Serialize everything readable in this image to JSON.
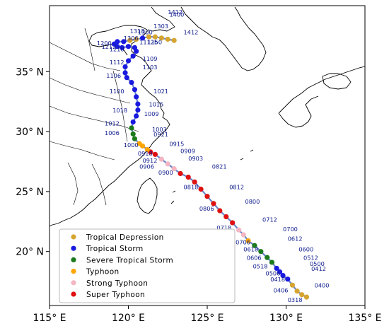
{
  "map": {
    "x_ticks": [
      {
        "value": 115,
        "label": "115° E"
      },
      {
        "value": 120,
        "label": "120° E"
      },
      {
        "value": 125,
        "label": "125° E"
      },
      {
        "value": 130,
        "label": "130° E"
      },
      {
        "value": 135,
        "label": "135° E"
      }
    ],
    "y_ticks": [
      {
        "value": 20,
        "label": "20° N"
      },
      {
        "value": 25,
        "label": "25° N"
      },
      {
        "value": 30,
        "label": "30° N"
      },
      {
        "value": 35,
        "label": "35° N"
      }
    ],
    "lon_range": [
      115,
      135
    ],
    "lat_range": [
      15.5,
      40.5
    ],
    "track_line_color": "#6b84c9",
    "legend": [
      {
        "key": "TD",
        "label": "Tropical Depression",
        "color": "#d6a530"
      },
      {
        "key": "TS",
        "label": "Tropical Storm",
        "color": "#1a1ae0"
      },
      {
        "key": "STS",
        "label": "Severe Tropical Storm",
        "color": "#1c7a1c"
      },
      {
        "key": "TY",
        "label": "Typhoon",
        "color": "#ffa500"
      },
      {
        "key": "STY",
        "label": "Strong Typhoon",
        "color": "#f4b6c2"
      },
      {
        "key": "SuperTY",
        "label": "Super Typhoon",
        "color": "#e01010"
      }
    ],
    "track": [
      {
        "lon": 131.3,
        "lat": 16.2,
        "cat": "TD"
      },
      {
        "lon": 131.0,
        "lat": 16.4,
        "cat": "TD"
      },
      {
        "lon": 130.7,
        "lat": 16.7,
        "cat": "TD"
      },
      {
        "lon": 130.4,
        "lat": 17.2,
        "cat": "TD"
      },
      {
        "lon": 130.1,
        "lat": 17.7,
        "cat": "TS"
      },
      {
        "lon": 129.8,
        "lat": 18.0,
        "cat": "TS"
      },
      {
        "lon": 129.6,
        "lat": 18.3,
        "cat": "TS"
      },
      {
        "lon": 129.4,
        "lat": 18.6,
        "cat": "TS"
      },
      {
        "lon": 129.1,
        "lat": 19.1,
        "cat": "STS"
      },
      {
        "lon": 128.8,
        "lat": 19.5,
        "cat": "STS"
      },
      {
        "lon": 128.4,
        "lat": 20.0,
        "cat": "STS"
      },
      {
        "lon": 128.0,
        "lat": 20.5,
        "cat": "STS"
      },
      {
        "lon": 127.6,
        "lat": 20.9,
        "cat": "TY"
      },
      {
        "lon": 127.3,
        "lat": 21.4,
        "cat": "STY"
      },
      {
        "lon": 127.0,
        "lat": 21.8,
        "cat": "STY"
      },
      {
        "lon": 126.6,
        "lat": 22.4,
        "cat": "SuperTY"
      },
      {
        "lon": 126.2,
        "lat": 22.9,
        "cat": "SuperTY"
      },
      {
        "lon": 125.8,
        "lat": 23.4,
        "cat": "SuperTY"
      },
      {
        "lon": 125.4,
        "lat": 24.0,
        "cat": "SuperTY"
      },
      {
        "lon": 125.0,
        "lat": 24.6,
        "cat": "SuperTY"
      },
      {
        "lon": 124.6,
        "lat": 25.2,
        "cat": "SuperTY"
      },
      {
        "lon": 124.2,
        "lat": 25.8,
        "cat": "SuperTY"
      },
      {
        "lon": 123.8,
        "lat": 26.2,
        "cat": "SuperTY"
      },
      {
        "lon": 123.3,
        "lat": 26.5,
        "cat": "SuperTY"
      },
      {
        "lon": 122.9,
        "lat": 26.9,
        "cat": "STY"
      },
      {
        "lon": 122.5,
        "lat": 27.3,
        "cat": "STY"
      },
      {
        "lon": 122.1,
        "lat": 27.7,
        "cat": "STY"
      },
      {
        "lon": 121.7,
        "lat": 28.1,
        "cat": "SuperTY"
      },
      {
        "lon": 121.4,
        "lat": 28.3,
        "cat": "SuperTY"
      },
      {
        "lon": 121.2,
        "lat": 28.5,
        "cat": "TY"
      },
      {
        "lon": 120.9,
        "lat": 28.8,
        "cat": "TY"
      },
      {
        "lon": 120.7,
        "lat": 29.0,
        "cat": "TY"
      },
      {
        "lon": 120.4,
        "lat": 29.4,
        "cat": "STS"
      },
      {
        "lon": 120.3,
        "lat": 29.8,
        "cat": "STS"
      },
      {
        "lon": 120.2,
        "lat": 30.3,
        "cat": "STS"
      },
      {
        "lon": 120.3,
        "lat": 30.8,
        "cat": "TS"
      },
      {
        "lon": 120.5,
        "lat": 31.3,
        "cat": "TS"
      },
      {
        "lon": 120.6,
        "lat": 31.8,
        "cat": "TS"
      },
      {
        "lon": 120.6,
        "lat": 32.3,
        "cat": "TS"
      },
      {
        "lon": 120.5,
        "lat": 32.9,
        "cat": "TS"
      },
      {
        "lon": 120.4,
        "lat": 33.5,
        "cat": "TS"
      },
      {
        "lon": 120.2,
        "lat": 34.1,
        "cat": "TS"
      },
      {
        "lon": 119.9,
        "lat": 34.5,
        "cat": "TS"
      },
      {
        "lon": 119.8,
        "lat": 34.9,
        "cat": "TS"
      },
      {
        "lon": 119.8,
        "lat": 35.4,
        "cat": "TS"
      },
      {
        "lon": 120.0,
        "lat": 35.9,
        "cat": "TS"
      },
      {
        "lon": 120.3,
        "lat": 36.3,
        "cat": "TS"
      },
      {
        "lon": 120.5,
        "lat": 36.7,
        "cat": "TS"
      },
      {
        "lon": 120.4,
        "lat": 37.0,
        "cat": "TS"
      },
      {
        "lon": 120.0,
        "lat": 37.1,
        "cat": "TS"
      },
      {
        "lon": 119.6,
        "lat": 37.0,
        "cat": "TS"
      },
      {
        "lon": 119.3,
        "lat": 37.1,
        "cat": "TS"
      },
      {
        "lon": 119.1,
        "lat": 37.3,
        "cat": "TS"
      },
      {
        "lon": 119.3,
        "lat": 37.5,
        "cat": "TS"
      },
      {
        "lon": 119.7,
        "lat": 37.5,
        "cat": "TS"
      },
      {
        "lon": 120.1,
        "lat": 37.6,
        "cat": "TD"
      },
      {
        "lon": 120.5,
        "lat": 37.7,
        "cat": "TD"
      },
      {
        "lon": 120.9,
        "lat": 37.8,
        "cat": "TS"
      },
      {
        "lon": 121.3,
        "lat": 37.9,
        "cat": "TD"
      },
      {
        "lon": 121.7,
        "lat": 37.9,
        "cat": "TD"
      },
      {
        "lon": 122.1,
        "lat": 37.8,
        "cat": "TD"
      },
      {
        "lon": 122.5,
        "lat": 37.7,
        "cat": "TD"
      },
      {
        "lon": 122.9,
        "lat": 37.6,
        "cat": "TD"
      }
    ],
    "time_labels": [
      {
        "text": "0318",
        "lon": 130.1,
        "lat": 15.8
      },
      {
        "text": "0406",
        "lon": 129.2,
        "lat": 16.6
      },
      {
        "text": "0400",
        "lon": 131.8,
        "lat": 17.0
      },
      {
        "text": "0418",
        "lon": 129.0,
        "lat": 17.5
      },
      {
        "text": "0506",
        "lon": 128.7,
        "lat": 18.0
      },
      {
        "text": "0412",
        "lon": 131.6,
        "lat": 18.4
      },
      {
        "text": "0500",
        "lon": 131.5,
        "lat": 18.8
      },
      {
        "text": "0512",
        "lon": 131.1,
        "lat": 19.3
      },
      {
        "text": "0518",
        "lon": 127.9,
        "lat": 18.6
      },
      {
        "text": "0606",
        "lon": 127.5,
        "lat": 19.3
      },
      {
        "text": "0600",
        "lon": 130.8,
        "lat": 20.0
      },
      {
        "text": "0618",
        "lon": 127.3,
        "lat": 20.0
      },
      {
        "text": "0612",
        "lon": 130.1,
        "lat": 20.9
      },
      {
        "text": "0706",
        "lon": 126.8,
        "lat": 20.6
      },
      {
        "text": "0700",
        "lon": 129.8,
        "lat": 21.7
      },
      {
        "text": "0718",
        "lon": 125.6,
        "lat": 21.8
      },
      {
        "text": "0712",
        "lon": 128.5,
        "lat": 22.5
      },
      {
        "text": "0806",
        "lon": 124.5,
        "lat": 23.4
      },
      {
        "text": "0800",
        "lon": 127.4,
        "lat": 24.0
      },
      {
        "text": "0818",
        "lon": 123.5,
        "lat": 25.2
      },
      {
        "text": "0812",
        "lon": 126.4,
        "lat": 25.2
      },
      {
        "text": "0900",
        "lon": 121.9,
        "lat": 26.4
      },
      {
        "text": "0821",
        "lon": 125.3,
        "lat": 26.9
      },
      {
        "text": "0906",
        "lon": 120.7,
        "lat": 26.9
      },
      {
        "text": "0912",
        "lon": 120.9,
        "lat": 27.4
      },
      {
        "text": "0903",
        "lon": 123.8,
        "lat": 27.6
      },
      {
        "text": "0918",
        "lon": 120.6,
        "lat": 28.0
      },
      {
        "text": "0909",
        "lon": 123.3,
        "lat": 28.2
      },
      {
        "text": "0915",
        "lon": 122.6,
        "lat": 28.8
      },
      {
        "text": "1000",
        "lon": 119.7,
        "lat": 28.7
      },
      {
        "text": "0921",
        "lon": 121.6,
        "lat": 29.6
      },
      {
        "text": "1006",
        "lon": 118.5,
        "lat": 29.7
      },
      {
        "text": "1003",
        "lon": 121.5,
        "lat": 30.0
      },
      {
        "text": "1012",
        "lon": 118.5,
        "lat": 30.5
      },
      {
        "text": "1009",
        "lon": 121.0,
        "lat": 31.3
      },
      {
        "text": "1018",
        "lon": 119.0,
        "lat": 31.6
      },
      {
        "text": "1015",
        "lon": 121.3,
        "lat": 32.1
      },
      {
        "text": "1100",
        "lon": 118.8,
        "lat": 33.2
      },
      {
        "text": "1021",
        "lon": 121.6,
        "lat": 33.2
      },
      {
        "text": "1106",
        "lon": 118.6,
        "lat": 34.5
      },
      {
        "text": "1103",
        "lon": 120.9,
        "lat": 35.2
      },
      {
        "text": "1112",
        "lon": 118.8,
        "lat": 35.6
      },
      {
        "text": "1109",
        "lon": 120.9,
        "lat": 35.9
      },
      {
        "text": "1200",
        "lon": 118.0,
        "lat": 37.2
      },
      {
        "text": "1212",
        "lon": 118.3,
        "lat": 36.9
      },
      {
        "text": "1218",
        "lon": 118.8,
        "lat": 36.7
      },
      {
        "text": "1306",
        "lon": 119.7,
        "lat": 37.6
      },
      {
        "text": "1318",
        "lon": 120.1,
        "lat": 38.2
      },
      {
        "text": "1300",
        "lon": 120.6,
        "lat": 38.1
      },
      {
        "text": "1112b",
        "lon": 120.7,
        "lat": 37.3
      },
      {
        "text": "1150",
        "lon": 121.2,
        "lat": 37.3
      },
      {
        "text": "1303",
        "lon": 121.6,
        "lat": 38.6
      },
      {
        "text": "1400",
        "lon": 122.6,
        "lat": 39.6
      },
      {
        "text": "1412",
        "lon": 122.5,
        "lat": 39.8
      },
      {
        "text": "1412",
        "lon": 123.5,
        "lat": 38.1
      }
    ]
  }
}
